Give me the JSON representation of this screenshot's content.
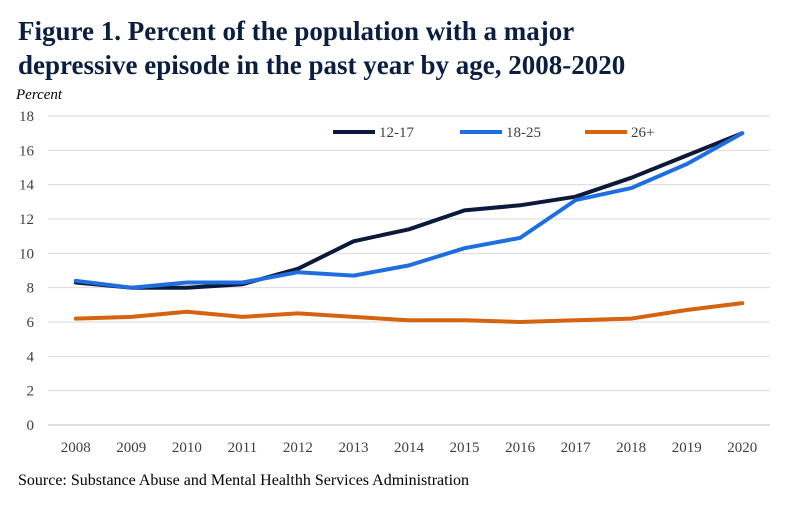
{
  "title_line1": "Figure 1. Percent of the population with a major",
  "title_line2": "depressive episode in the past year by age, 2008-2020",
  "source": "Source: Substance Abuse and Mental Healthh Services Administration",
  "chart_data": {
    "type": "line",
    "ylabel": "Percent",
    "xlabel": "",
    "x": [
      "2008",
      "2009",
      "2010",
      "2011",
      "2012",
      "2013",
      "2014",
      "2015",
      "2016",
      "2017",
      "2018",
      "2019",
      "2020"
    ],
    "ylim": [
      0,
      18
    ],
    "yticks": [
      0,
      2,
      4,
      6,
      8,
      10,
      12,
      14,
      16,
      18
    ],
    "grid": true,
    "legend_position": "top",
    "series": [
      {
        "name": "12-17",
        "color": "#0b1a3a",
        "values": [
          8.3,
          8.0,
          8.0,
          8.2,
          9.1,
          10.7,
          11.4,
          12.5,
          12.8,
          13.3,
          14.4,
          15.7,
          17.0
        ]
      },
      {
        "name": "18-25",
        "color": "#1f6ee0",
        "values": [
          8.4,
          8.0,
          8.3,
          8.3,
          8.9,
          8.7,
          9.3,
          10.3,
          10.9,
          13.1,
          13.8,
          15.2,
          17.0
        ]
      },
      {
        "name": "26+",
        "color": "#d4640f",
        "values": [
          6.2,
          6.3,
          6.6,
          6.3,
          6.5,
          6.3,
          6.1,
          6.1,
          6.0,
          6.1,
          6.2,
          6.7,
          7.1
        ]
      }
    ]
  }
}
